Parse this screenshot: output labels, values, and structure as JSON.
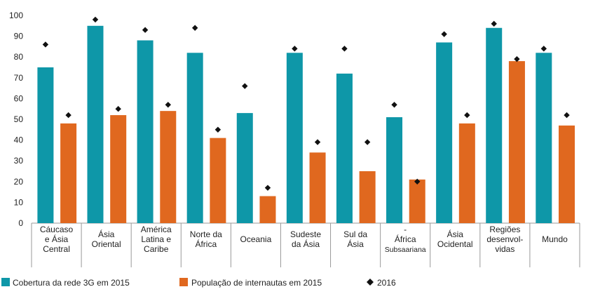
{
  "chart_data": {
    "type": "bar",
    "title": "",
    "xlabel": "",
    "ylabel": "",
    "ylim": [
      0,
      100
    ],
    "yticks": [
      0,
      10,
      20,
      30,
      40,
      50,
      60,
      70,
      80,
      90,
      100
    ],
    "grid": false,
    "legend_position": "bottom-left",
    "categories": [
      [
        "Cáucaso",
        "e Ásia",
        "Central"
      ],
      [
        "Ásia",
        "Oriental"
      ],
      [
        "América",
        "Latina e",
        "Caribe"
      ],
      [
        "Norte da",
        "África"
      ],
      [
        "Oceania"
      ],
      [
        "Sudeste",
        "da Ásia"
      ],
      [
        "Sul da",
        "Ásia"
      ],
      [
        "-",
        "África",
        "Subsaariana"
      ],
      [
        "Ásia",
        "Ocidental"
      ],
      [
        "Regiões",
        "desenvol-",
        "vidas"
      ],
      [
        "Mundo"
      ]
    ],
    "series": [
      {
        "name": "Cobertura da rede 3G em 2015",
        "kind": "bar",
        "color": "#0e97a8",
        "values": [
          75,
          95,
          88,
          82,
          53,
          82,
          72,
          51,
          87,
          94,
          82
        ]
      },
      {
        "name": "População de internautas em 2015",
        "kind": "bar",
        "color": "#e0681f",
        "values": [
          48,
          52,
          54,
          41,
          13,
          34,
          25,
          21,
          48,
          78,
          47
        ]
      },
      {
        "name": "2016",
        "kind": "marker",
        "color": "#111111",
        "values": [
          86,
          98,
          93,
          94,
          66,
          84,
          84,
          57,
          91,
          96,
          84
        ],
        "values_second": [
          52,
          55,
          57,
          45,
          17,
          39,
          39,
          20,
          52,
          79,
          52
        ]
      }
    ]
  }
}
